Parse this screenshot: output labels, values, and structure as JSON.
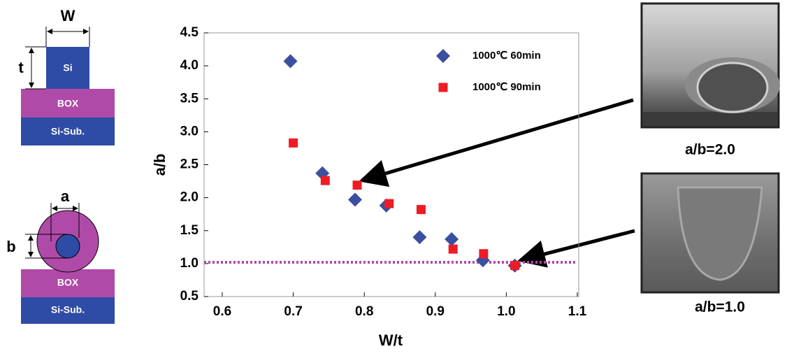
{
  "chart_data": {
    "type": "scatter",
    "x_label": "W/t",
    "y_label": "a/b",
    "xlim": [
      0.6,
      1.1
    ],
    "xticks": [
      0.6,
      0.7,
      0.8,
      0.9,
      {
        "value": 1.0,
        "label": "1.0"
      },
      1.1
    ],
    "ylim": [
      0.5,
      4.5
    ],
    "yticks": [
      0.5,
      {
        "value": 1.0,
        "label": "1.0"
      },
      1.5,
      {
        "value": 2.0,
        "label": "2.0"
      },
      2.5,
      {
        "value": 3.0,
        "label": "3.0"
      },
      3.5,
      {
        "value": 4.0,
        "label": "4.0"
      },
      4.5
    ],
    "reference_line": {
      "value": 1.02,
      "color": "#b04aa8"
    },
    "series": [
      {
        "name": "1000℃  60min",
        "color": "#3b4fa0",
        "marker": "diamond",
        "x": [
          0.696,
          0.741,
          0.787,
          0.831,
          0.878,
          0.923,
          0.967,
          1.012
        ],
        "values": [
          4.07,
          2.37,
          1.97,
          1.88,
          1.4,
          1.37,
          1.05,
          0.97
        ]
      },
      {
        "name": "1000℃  90min",
        "color": "#ee1c24",
        "marker": "square",
        "x": [
          0.7,
          0.745,
          0.79,
          0.835,
          0.88,
          0.925,
          0.968,
          1.012
        ],
        "values": [
          2.83,
          2.26,
          2.19,
          1.91,
          1.82,
          1.22,
          1.15,
          0.97
        ]
      }
    ]
  },
  "diagram": {
    "top": {
      "w": "W",
      "t": "t",
      "si": "Si",
      "box": "BOX",
      "sub": "Si-Sub."
    },
    "bottom": {
      "a": "a",
      "b": "b",
      "box": "BOX",
      "sub": "Si-Sub."
    }
  },
  "images": [
    {
      "caption": "a/b=2.0"
    },
    {
      "caption": "a/b=1.0"
    }
  ]
}
